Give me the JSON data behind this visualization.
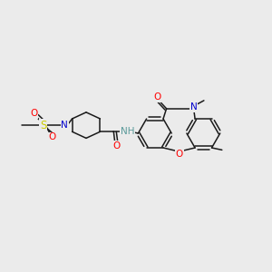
{
  "bg_color": "#ebebeb",
  "bond_color": "#1a1a1a",
  "atom_colors": {
    "O": "#ff0000",
    "N": "#0000cc",
    "S": "#cccc00",
    "H": "#5a9a9a",
    "C": "#1a1a1a"
  },
  "figsize": [
    3.0,
    3.0
  ],
  "dpi": 100
}
